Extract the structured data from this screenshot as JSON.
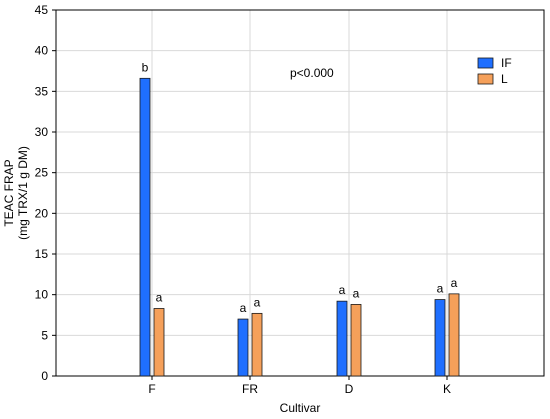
{
  "chart_data": {
    "type": "bar",
    "categories": [
      "F",
      "FR",
      "D",
      "K"
    ],
    "series": [
      {
        "name": "IF",
        "color": "#1f6fff",
        "values": [
          36.6,
          7.0,
          9.2,
          9.4
        ],
        "letters": [
          "b",
          "a",
          "a",
          "a"
        ]
      },
      {
        "name": "L",
        "color": "#f5a05a",
        "values": [
          8.3,
          7.7,
          8.8,
          10.1
        ],
        "letters": [
          "a",
          "a",
          "a",
          "a"
        ]
      }
    ],
    "xlabel": "Cultivar",
    "ylabel_line1": "TEAC FRAP",
    "ylabel_line2": "(mg TRX/1 g DM)",
    "ylim": [
      0,
      45
    ],
    "yticks": [
      0,
      5,
      10,
      15,
      20,
      25,
      30,
      35,
      40,
      45
    ],
    "annotation": "p<0.000",
    "grid": true,
    "legend_position": "top-right"
  }
}
